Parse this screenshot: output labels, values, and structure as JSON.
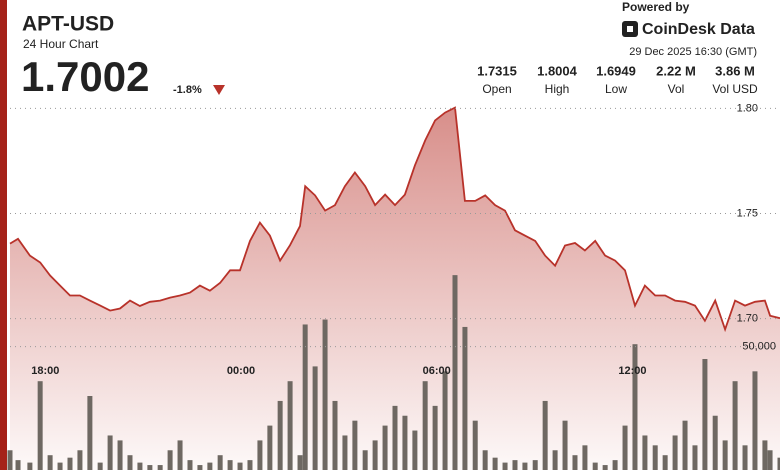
{
  "header": {
    "title": "APT-USD",
    "subtitle": "24 Hour Chart",
    "price": "1.7002",
    "change": "-1.8%"
  },
  "brand": {
    "powered_by": "Powered by",
    "name": "CoinDesk Data",
    "timestamp": "29 Dec 2025 16:30 (GMT)"
  },
  "stats": [
    {
      "value": "1.7315",
      "label": "Open"
    },
    {
      "value": "1.8004",
      "label": "High"
    },
    {
      "value": "1.6949",
      "label": "Low"
    },
    {
      "value": "2.22 M",
      "label": "Vol"
    },
    {
      "value": "3.86 M",
      "label": "Vol USD"
    }
  ],
  "chart_data": {
    "type": "line",
    "x": [
      0,
      0.25,
      0.62,
      0.94,
      1.25,
      1.56,
      1.87,
      2.18,
      2.49,
      2.81,
      3.12,
      3.43,
      3.74,
      4.05,
      4.36,
      4.68,
      4.99,
      5.3,
      5.61,
      5.92,
      6.23,
      6.55,
      6.86,
      7.17,
      7.48,
      7.79,
      8.1,
      8.42,
      8.73,
      9.04,
      9.2,
      9.51,
      9.82,
      10.13,
      10.44,
      10.75,
      11.07,
      11.38,
      11.69,
      12,
      12.31,
      12.62,
      12.94,
      13.25,
      13.56,
      13.87,
      14.18,
      14.5,
      14.81,
      15.12,
      15.43,
      15.74,
      16.05,
      16.37,
      16.68,
      16.99,
      17.3,
      17.61,
      17.92,
      18.24,
      18.55,
      18.86,
      19.17,
      19.48,
      19.79,
      20.11,
      20.42,
      20.73,
      21.04,
      21.35,
      21.66,
      21.98,
      22.29,
      22.6,
      22.91,
      23.22,
      23.53,
      23.69,
      24
    ],
    "series": [
      {
        "color": "#b8322a",
        "values": [
          1.7357,
          1.738,
          1.73,
          1.7267,
          1.7205,
          1.7157,
          1.711,
          1.711,
          1.7086,
          1.7062,
          1.7038,
          1.7048,
          1.7086,
          1.706,
          1.708,
          1.7086,
          1.71,
          1.711,
          1.7124,
          1.7157,
          1.7133,
          1.717,
          1.723,
          1.723,
          1.737,
          1.7457,
          1.7395,
          1.7276,
          1.735,
          1.744,
          1.763,
          1.7586,
          1.7514,
          1.754,
          1.763,
          1.7695,
          1.763,
          1.754,
          1.759,
          1.754,
          1.759,
          1.7729,
          1.7848,
          1.7943,
          1.798,
          1.8004,
          1.756,
          1.756,
          1.7586,
          1.754,
          1.7514,
          1.742,
          1.7395,
          1.737,
          1.73,
          1.7252,
          1.7348,
          1.736,
          1.7324,
          1.737,
          1.73,
          1.7276,
          1.723,
          1.7062,
          1.7157,
          1.711,
          1.711,
          1.7086,
          1.708,
          1.7062,
          1.699,
          1.7086,
          1.6949,
          1.7086,
          1.7062,
          1.708,
          1.7086,
          1.7014,
          1.7002
        ]
      },
      {
        "color": "#6e6862",
        "type": "bar",
        "axis": "y2",
        "values": [
          8000,
          4000,
          3000,
          36000,
          6000,
          3000,
          5000,
          8000,
          30000,
          3000,
          14000,
          12000,
          6000,
          3000,
          2000,
          2000,
          8000,
          12000,
          4000,
          2000,
          3000,
          6000,
          4000,
          3000,
          4000,
          12000,
          18000,
          28000,
          36000,
          6000,
          59000,
          42000,
          61000,
          28000,
          14000,
          20000,
          8000,
          12000,
          18000,
          26000,
          22000,
          16000,
          36000,
          26000,
          40000,
          79000,
          58000,
          20000,
          8000,
          5000,
          3000,
          4000,
          3000,
          4000,
          28000,
          8000,
          20000,
          6000,
          10000,
          3000,
          2000,
          4000,
          18000,
          51000,
          14000,
          10000,
          6000,
          14000,
          20000,
          10000,
          45000,
          22000,
          12000,
          36000,
          10000,
          40000,
          12000,
          8000,
          5000
        ]
      }
    ],
    "xlim": [
      0,
      24
    ],
    "xticks": [
      {
        "value": 1.1,
        "label": "18:00"
      },
      {
        "value": 7.2,
        "label": "00:00"
      },
      {
        "value": 13.3,
        "label": "06:00"
      },
      {
        "value": 19.4,
        "label": "12:00"
      }
    ],
    "ylim": [
      1.628,
      1.804
    ],
    "yticks": [
      {
        "value": 1.7,
        "label": "1.70"
      },
      1.75,
      {
        "value": 1.8,
        "label": "1.80"
      }
    ],
    "y2lim": [
      0,
      150000
    ],
    "y2ticks": [
      {
        "value": 50000,
        "label": "50,000"
      }
    ],
    "grid": true
  }
}
